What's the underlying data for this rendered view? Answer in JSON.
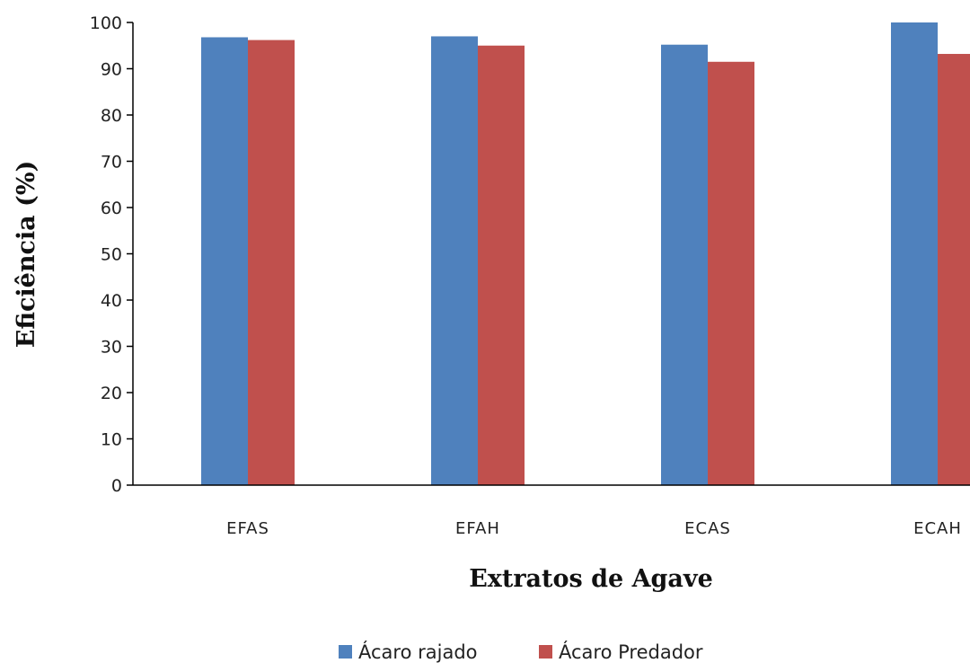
{
  "chart_data": {
    "type": "bar",
    "xlabel": "Extratos de Agave",
    "ylabel": "Eficiência (%)",
    "ylim": [
      0,
      100
    ],
    "yticks": [
      0,
      10,
      20,
      30,
      40,
      50,
      60,
      70,
      80,
      90,
      100
    ],
    "categories": [
      "EFAS",
      "EFAH",
      "ECAS",
      "ECAH"
    ],
    "series": [
      {
        "name": "Ácaro rajado",
        "color": "#4f81bd",
        "values": [
          96.8,
          97.0,
          95.2,
          100
        ]
      },
      {
        "name": "Ácaro Predador",
        "color": "#c0504d",
        "values": [
          96.2,
          95.0,
          91.5,
          93.2
        ]
      }
    ],
    "grid": false,
    "legend": "bottom"
  }
}
